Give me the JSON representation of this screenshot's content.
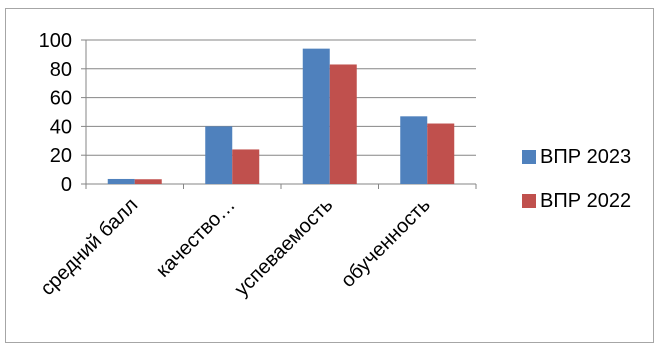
{
  "chart_data": {
    "type": "bar",
    "categories": [
      "средний балл",
      "качество…",
      "успеваемость",
      "обученность"
    ],
    "series": [
      {
        "name": "ВПР 2023",
        "color": "#4f81bd",
        "values": [
          3.5,
          40,
          94,
          47
        ]
      },
      {
        "name": "ВПР 2022",
        "color": "#c0504d",
        "values": [
          3.3,
          24,
          83,
          42
        ]
      }
    ],
    "ylim": [
      0,
      100
    ],
    "yticks": [
      0,
      20,
      40,
      60,
      80,
      100
    ],
    "grid": true,
    "legend_position": "right",
    "title": "",
    "xlabel": "",
    "ylabel": ""
  }
}
